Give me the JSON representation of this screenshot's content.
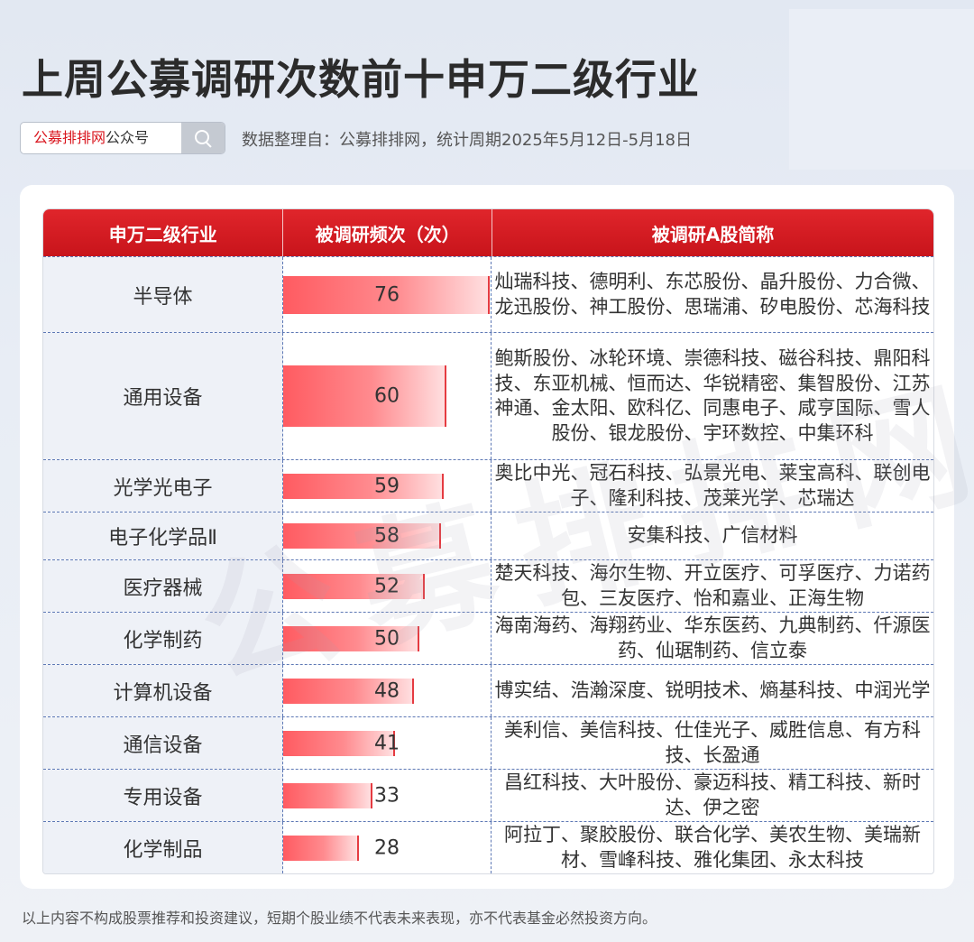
{
  "title": "上周公募调研次数前十申万二级行业",
  "search": {
    "brand_red": "公募排排网",
    "brand_suffix": "公众号",
    "icon": "search-icon"
  },
  "source_note": "数据整理自：公募排排网，统计周期2025年5月12日-5月18日",
  "watermark": "公募排排网",
  "colors": {
    "accent": "#d9161e",
    "bar": "#ff6066",
    "row_label_bg": "#eef1f7"
  },
  "table": {
    "headers": [
      "申万二级行业",
      "被调研频次（次）",
      "被调研A股简称"
    ]
  },
  "chart_data": {
    "type": "bar",
    "orientation": "horizontal",
    "categories": [
      "半导体",
      "通用设备",
      "光学光电子",
      "电子化学品Ⅱ",
      "医疗器械",
      "化学制药",
      "计算机设备",
      "通信设备",
      "专用设备",
      "化学制品"
    ],
    "values": [
      76,
      60,
      59,
      58,
      52,
      50,
      48,
      41,
      33,
      28
    ],
    "xlim": [
      0,
      76
    ],
    "stocks": [
      "灿瑞科技、德明利、东芯股份、晶升股份、力合微、龙迅股份、神工股份、思瑞浦、矽电股份、芯海科技",
      "鲍斯股份、冰轮环境、崇德科技、磁谷科技、鼎阳科技、东亚机械、恒而达、华锐精密、集智股份、江苏神通、金太阳、欧科亿、同惠电子、咸亨国际、雪人股份、银龙股份、宇环数控、中集环科",
      "奥比中光、冠石科技、弘景光电、莱宝高科、联创电子、隆利科技、茂莱光学、芯瑞达",
      "安集科技、广信材料",
      "楚天科技、海尔生物、开立医疗、可孚医疗、力诺药包、三友医疗、怡和嘉业、正海生物",
      "海南海药、海翔药业、华东医药、九典制药、仟源医药、仙琚制药、信立泰",
      "博实结、浩瀚深度、锐明技术、熵基科技、中润光学",
      "美利信、美信科技、仕佳光子、威胜信息、有方科技、长盈通",
      "昌红科技、大叶股份、豪迈科技、精工科技、新时达、伊之密",
      "阿拉丁、聚胶股份、联合化学、美农生物、美瑞新材、雪峰科技、雅化集团、永太科技"
    ]
  },
  "disclaimer": "以上内容不构成股票推荐和投资建议，短期个股业绩不代表未来表现，亦不代表基金必然投资方向。"
}
